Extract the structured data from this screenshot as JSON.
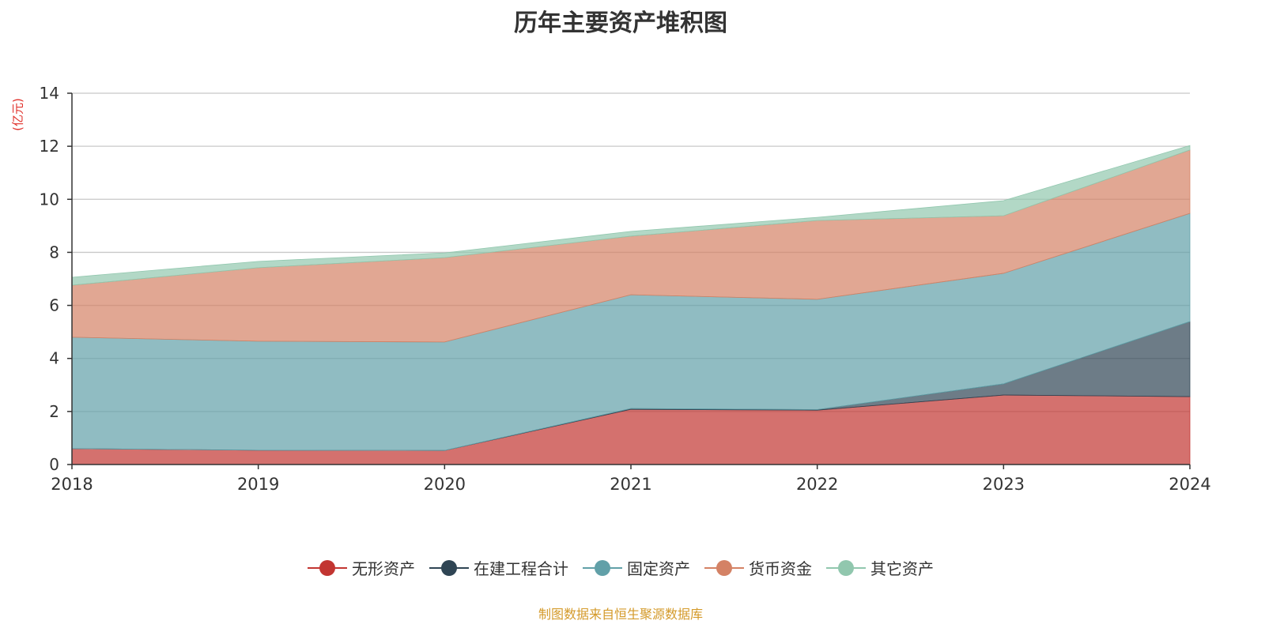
{
  "chart_data": {
    "type": "area",
    "stacked": true,
    "title": "历年主要资产堆积图",
    "ylabel": "(亿元)",
    "xlabel": "",
    "categories": [
      "2018",
      "2019",
      "2020",
      "2021",
      "2022",
      "2023",
      "2024"
    ],
    "ylim": [
      0,
      14
    ],
    "yticks": [
      0,
      2,
      4,
      6,
      8,
      10,
      12,
      14
    ],
    "grid": true,
    "legend_position": "bottom",
    "series": [
      {
        "name": "无形资产",
        "color": "#c23531",
        "values": [
          0.6,
          0.54,
          0.53,
          2.08,
          2.05,
          2.62,
          2.56
        ]
      },
      {
        "name": "在建工程合计",
        "color": "#2f4554",
        "values": [
          0.0,
          0.0,
          0.0,
          0.03,
          0.02,
          0.42,
          2.83
        ]
      },
      {
        "name": "固定资产",
        "color": "#61a0a8",
        "values": [
          4.2,
          4.11,
          4.09,
          4.29,
          4.16,
          4.17,
          4.08
        ]
      },
      {
        "name": "货币资金",
        "color": "#d48265",
        "values": [
          1.96,
          2.77,
          3.18,
          2.21,
          2.97,
          2.17,
          2.39
        ]
      },
      {
        "name": "其它资产",
        "color": "#91c7ae",
        "values": [
          0.3,
          0.24,
          0.18,
          0.18,
          0.12,
          0.57,
          0.17
        ]
      }
    ]
  },
  "source": "制图数据来自恒生聚源数据库"
}
